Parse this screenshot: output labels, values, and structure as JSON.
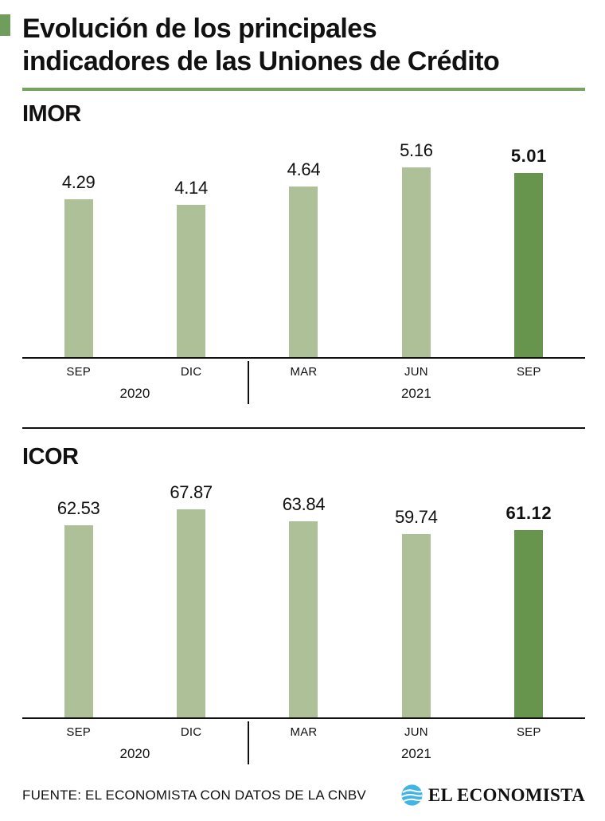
{
  "header": {
    "title_line1": "Evolución de los principales",
    "title_line2": "indicadores de las Uniones de Crédito"
  },
  "colors": {
    "bar_light": "#adc098",
    "bar_highlight": "#68954e",
    "accent_green": "#6f9d5b",
    "rule_green": "#7aa263",
    "logo_blue": "#41b4e6",
    "text": "#111111"
  },
  "chart_data": [
    {
      "type": "bar",
      "title": "IMOR",
      "categories": [
        "SEP",
        "DIC",
        "MAR",
        "JUN",
        "SEP"
      ],
      "values": [
        4.29,
        4.14,
        4.64,
        5.16,
        5.01
      ],
      "value_labels": [
        "4.29",
        "4.14",
        "4.64",
        "5.16",
        "5.01"
      ],
      "year_groups": [
        {
          "label": "2020",
          "span": 2
        },
        {
          "label": "2021",
          "span": 3
        }
      ],
      "highlight_index": 4,
      "ylim": [
        0,
        6
      ],
      "grid": false,
      "legend": "none",
      "value_labels_position": "above-bars"
    },
    {
      "type": "bar",
      "title": "ICOR",
      "categories": [
        "SEP",
        "DIC",
        "MAR",
        "JUN",
        "SEP"
      ],
      "values": [
        62.53,
        67.87,
        63.84,
        59.74,
        61.12
      ],
      "value_labels": [
        "62.53",
        "67.87",
        "63.84",
        "59.74",
        "61.12"
      ],
      "year_groups": [
        {
          "label": "2020",
          "span": 2
        },
        {
          "label": "2021",
          "span": 3
        }
      ],
      "highlight_index": 4,
      "ylim": [
        0,
        75
      ],
      "grid": false,
      "legend": "none",
      "value_labels_position": "above-bars"
    }
  ],
  "footer": {
    "source": "FUENTE: EL ECONOMISTA CON DATOS DE LA CNBV",
    "brand": "EL ECONOMISTA"
  }
}
